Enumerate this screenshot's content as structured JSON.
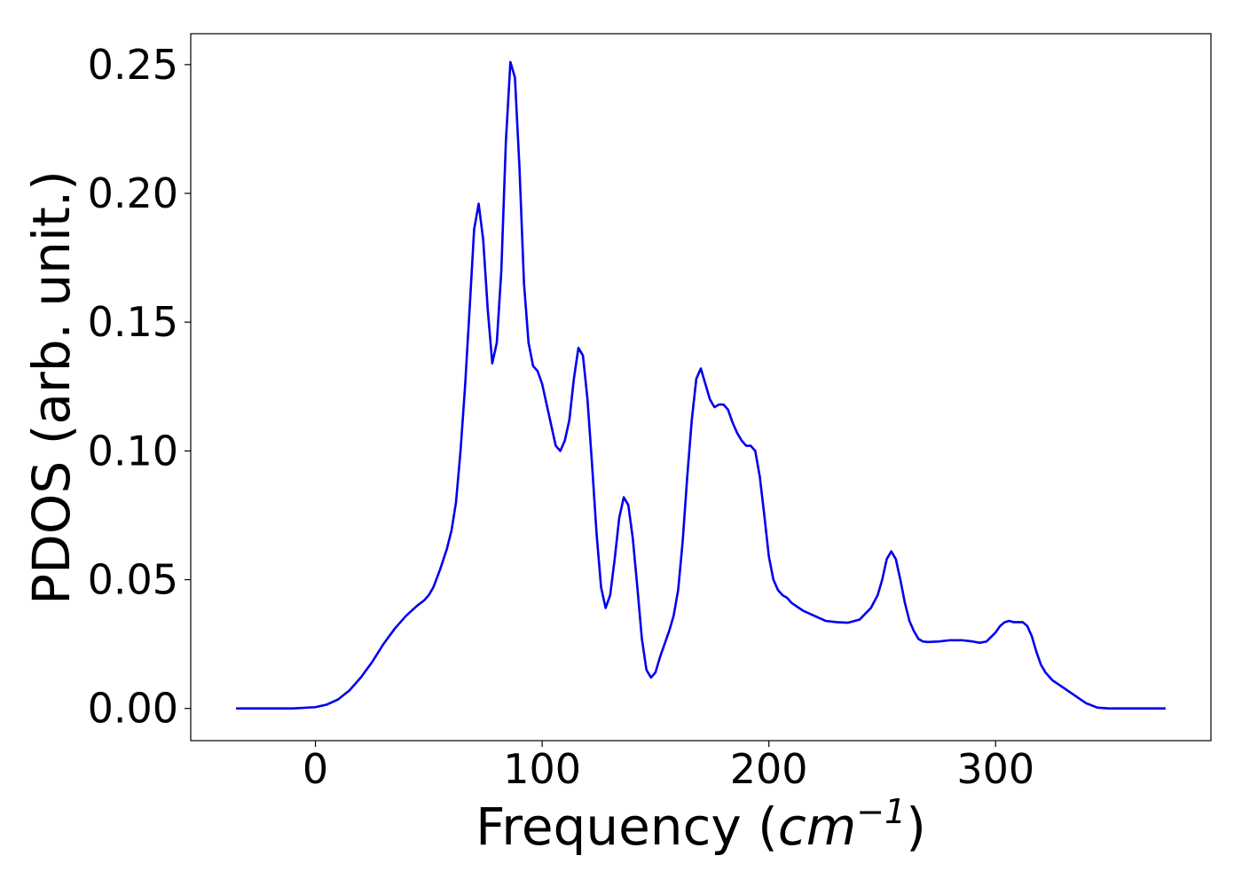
{
  "chart_data": {
    "type": "line",
    "title": "",
    "xlabel": "Frequency (",
    "xlabel_math": "cm",
    "xlabel_sup": "−1",
    "xlabel_close": ")",
    "ylabel": "PDOS (arb. unit.)",
    "xlim": [
      -55,
      395
    ],
    "ylim": [
      -0.0125,
      0.262
    ],
    "grid": false,
    "xticks": [
      0,
      100,
      200,
      300
    ],
    "xtick_labels": [
      "0",
      "100",
      "200",
      "300"
    ],
    "yticks": [
      0.0,
      0.05,
      0.1,
      0.15,
      0.2,
      0.25
    ],
    "ytick_labels": [
      "0.00",
      "0.05",
      "0.10",
      "0.15",
      "0.20",
      "0.25"
    ],
    "series": [
      {
        "color": "#0000ee",
        "x": [
          -35,
          -20,
          -10,
          0,
          5,
          10,
          15,
          20,
          25,
          30,
          35,
          40,
          45,
          48,
          50,
          52,
          55,
          58,
          60,
          62,
          64,
          66,
          68,
          70,
          72,
          74,
          76,
          78,
          80,
          82,
          84,
          86,
          88,
          90,
          92,
          94,
          96,
          98,
          100,
          102,
          104,
          106,
          108,
          110,
          112,
          114,
          116,
          118,
          120,
          122,
          124,
          126,
          128,
          130,
          132,
          134,
          136,
          138,
          140,
          142,
          144,
          146,
          148,
          150,
          152,
          154,
          156,
          158,
          160,
          162,
          164,
          166,
          168,
          170,
          172,
          174,
          176,
          178,
          180,
          182,
          184,
          186,
          188,
          190,
          192,
          194,
          196,
          198,
          200,
          202,
          204,
          206,
          208,
          210,
          215,
          220,
          225,
          230,
          235,
          240,
          245,
          248,
          250,
          252,
          254,
          256,
          258,
          260,
          262,
          264,
          266,
          268,
          270,
          275,
          280,
          285,
          290,
          293,
          296,
          300,
          302,
          304,
          306,
          308,
          310,
          312,
          314,
          316,
          318,
          320,
          322,
          325,
          330,
          335,
          340,
          345,
          350,
          360,
          375
        ],
        "y": [
          0.0,
          0.0,
          0.0,
          0.0005,
          0.0015,
          0.0035,
          0.007,
          0.012,
          0.018,
          0.025,
          0.031,
          0.036,
          0.04,
          0.042,
          0.044,
          0.047,
          0.054,
          0.062,
          0.069,
          0.08,
          0.1,
          0.125,
          0.155,
          0.186,
          0.196,
          0.182,
          0.155,
          0.134,
          0.142,
          0.17,
          0.22,
          0.251,
          0.245,
          0.21,
          0.165,
          0.142,
          0.133,
          0.131,
          0.126,
          0.118,
          0.11,
          0.102,
          0.1,
          0.104,
          0.112,
          0.128,
          0.14,
          0.137,
          0.12,
          0.095,
          0.068,
          0.047,
          0.039,
          0.044,
          0.058,
          0.074,
          0.082,
          0.079,
          0.066,
          0.047,
          0.027,
          0.015,
          0.012,
          0.014,
          0.02,
          0.025,
          0.03,
          0.036,
          0.046,
          0.065,
          0.09,
          0.112,
          0.128,
          0.132,
          0.126,
          0.12,
          0.117,
          0.118,
          0.118,
          0.116,
          0.111,
          0.107,
          0.104,
          0.102,
          0.102,
          0.1,
          0.09,
          0.075,
          0.059,
          0.05,
          0.046,
          0.044,
          0.043,
          0.041,
          0.038,
          0.036,
          0.034,
          0.0335,
          0.0333,
          0.0345,
          0.039,
          0.044,
          0.05,
          0.058,
          0.061,
          0.058,
          0.05,
          0.041,
          0.034,
          0.03,
          0.027,
          0.026,
          0.0258,
          0.026,
          0.0265,
          0.0265,
          0.026,
          0.0255,
          0.026,
          0.0295,
          0.032,
          0.0335,
          0.034,
          0.0335,
          0.0335,
          0.0335,
          0.032,
          0.028,
          0.022,
          0.017,
          0.014,
          0.011,
          0.008,
          0.005,
          0.002,
          0.0003,
          0.0,
          0.0,
          0.0
        ]
      }
    ]
  }
}
